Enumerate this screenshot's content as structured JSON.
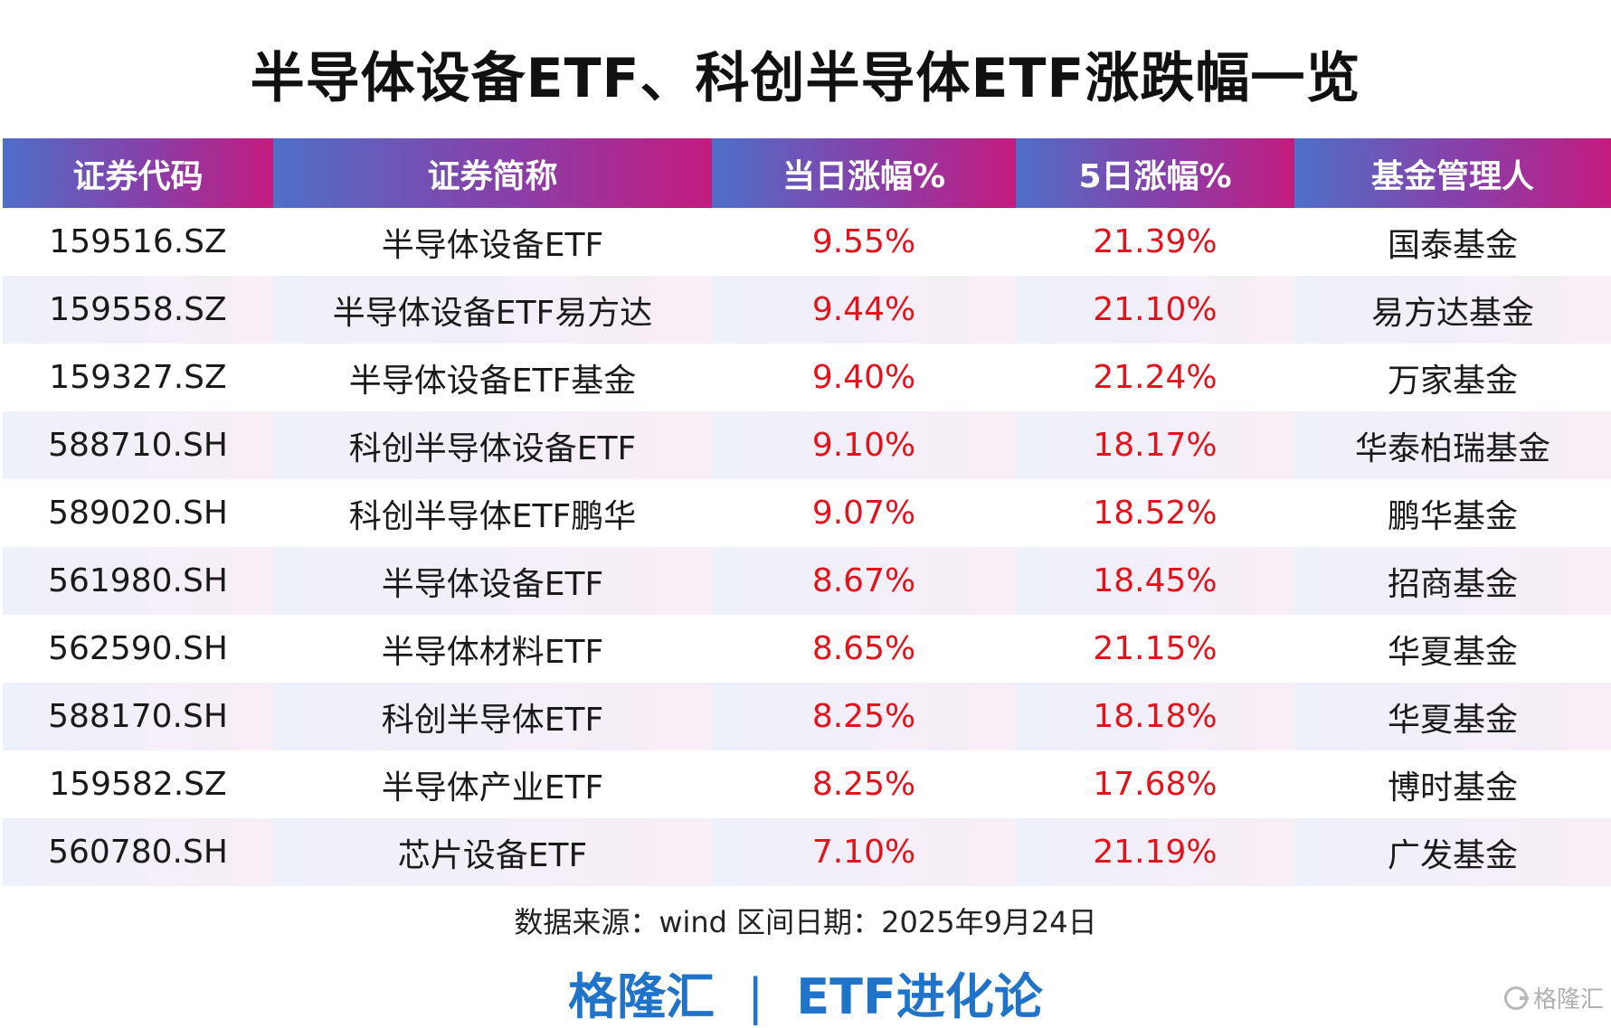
{
  "title": "半导体设备ETF、科创半导体ETF涨跌幅一览",
  "chart_data": {
    "type": "table",
    "columns": [
      "证券代码",
      "证券简称",
      "当日涨幅%",
      "5日涨幅%",
      "基金管理人"
    ],
    "rows": [
      [
        "159516.SZ",
        "半导体设备ETF",
        "9.55%",
        "21.39%",
        "国泰基金"
      ],
      [
        "159558.SZ",
        "半导体设备ETF易方达",
        "9.44%",
        "21.10%",
        "易方达基金"
      ],
      [
        "159327.SZ",
        "半导体设备ETF基金",
        "9.40%",
        "21.24%",
        "万家基金"
      ],
      [
        "588710.SH",
        "科创半导体设备ETF",
        "9.10%",
        "18.17%",
        "华泰柏瑞基金"
      ],
      [
        "589020.SH",
        "科创半导体ETF鹏华",
        "9.07%",
        "18.52%",
        "鹏华基金"
      ],
      [
        "561980.SH",
        "半导体设备ETF",
        "8.67%",
        "18.45%",
        "招商基金"
      ],
      [
        "562590.SH",
        "半导体材料ETF",
        "8.65%",
        "21.15%",
        "华夏基金"
      ],
      [
        "588170.SH",
        "科创半导体ETF",
        "8.25%",
        "18.18%",
        "华夏基金"
      ],
      [
        "159582.SZ",
        "半导体产业ETF",
        "8.25%",
        "17.68%",
        "博时基金"
      ],
      [
        "560780.SH",
        "芯片设备ETF",
        "7.10%",
        "21.19%",
        "广发基金"
      ]
    ]
  },
  "footer": {
    "source": "数据来源：wind  区间日期：2025年9月24日",
    "brand_left": "格隆汇",
    "brand_sep": "|",
    "brand_right": "ETF进化论",
    "watermark": "格隆汇"
  },
  "colors": {
    "header_gradient_start": "#4e6fc7",
    "header_gradient_end": "#c41b7e",
    "positive": "#e0141c",
    "brand": "#1f73c9"
  }
}
